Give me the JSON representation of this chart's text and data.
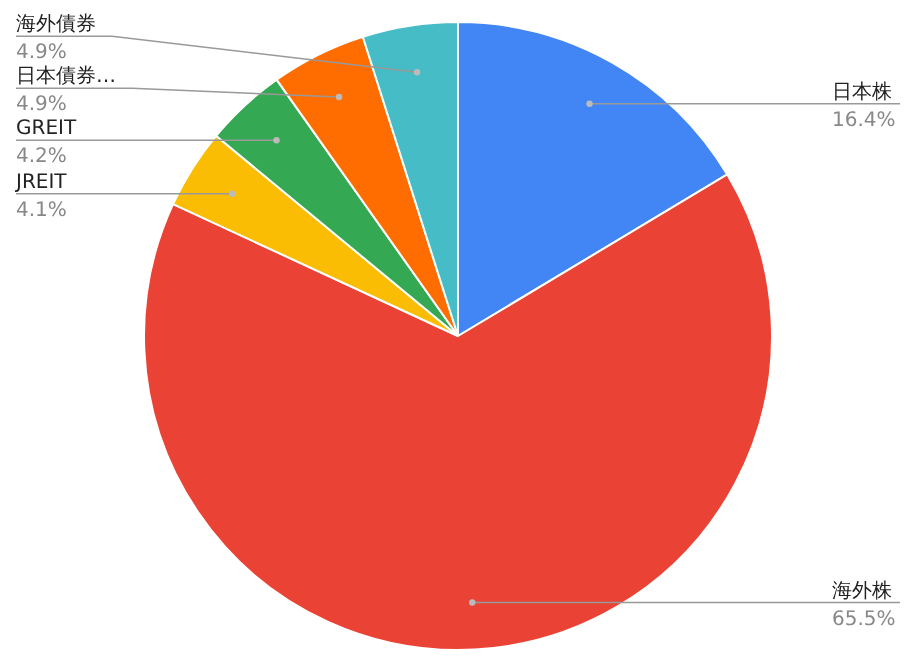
{
  "chart_data": {
    "type": "pie",
    "categories": [
      "日本株",
      "海外株",
      "JREIT",
      "GREIT",
      "日本債券…",
      "海外債券"
    ],
    "values": [
      16.4,
      65.5,
      4.1,
      4.2,
      4.9,
      4.9
    ],
    "value_labels": [
      "16.4%",
      "65.5%",
      "4.1%",
      "4.2%",
      "4.9%",
      "4.9%"
    ],
    "colors": [
      "#4285f4",
      "#ea4335",
      "#fbbc04",
      "#34a853",
      "#ff6d01",
      "#46bdc6"
    ]
  }
}
